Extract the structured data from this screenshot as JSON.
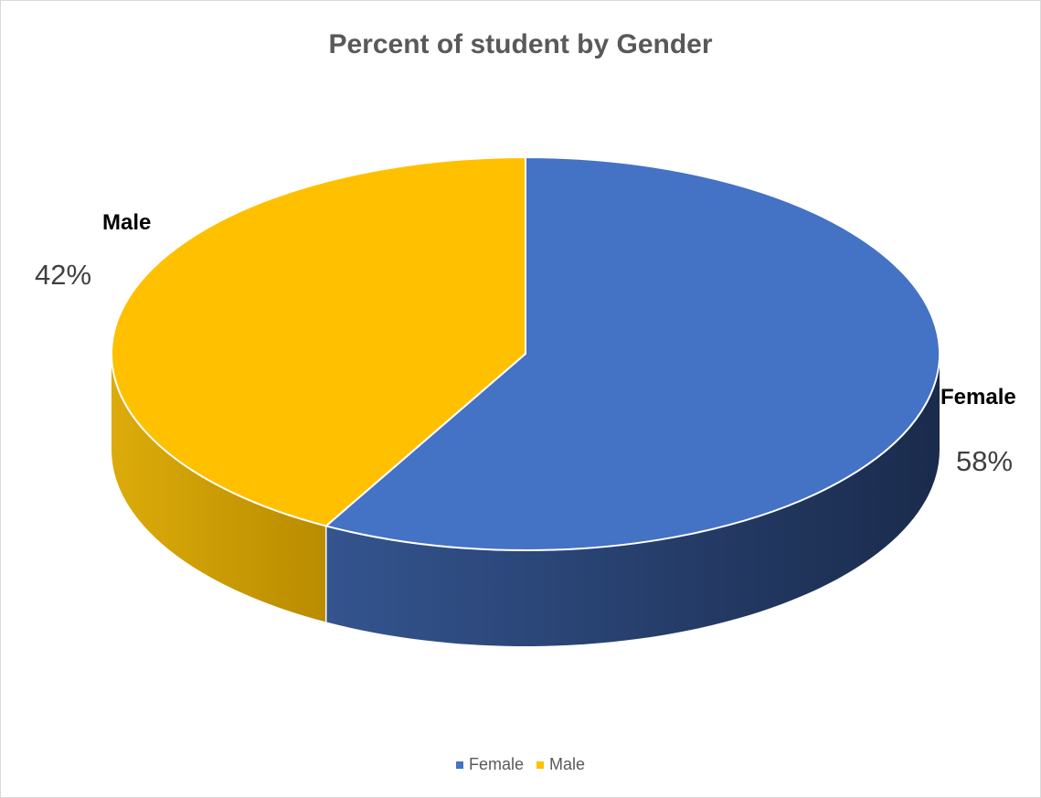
{
  "chart_data": {
    "type": "pie",
    "title": "Percent of student by Gender",
    "categories": [
      "Female",
      "Male"
    ],
    "values": [
      58,
      42
    ],
    "value_labels": [
      "58%",
      "42%"
    ],
    "colors": [
      "#4472c4",
      "#ffc000"
    ],
    "style": "3d",
    "legend_position": "bottom"
  },
  "legend": {
    "items": [
      {
        "label": "Female",
        "color": "#4472c4"
      },
      {
        "label": "Male",
        "color": "#ffc000"
      }
    ]
  }
}
